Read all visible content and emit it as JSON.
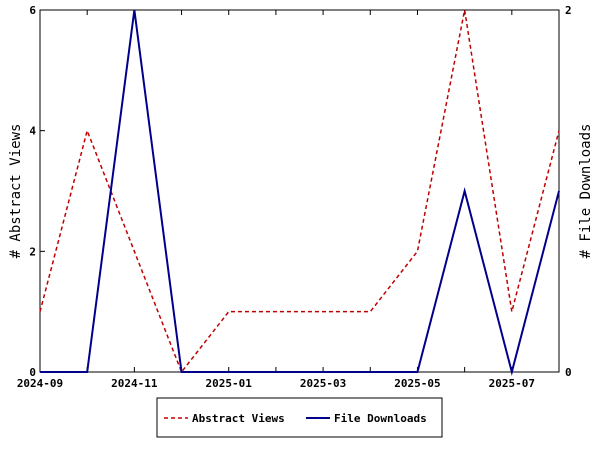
{
  "chart_data": {
    "type": "line",
    "x": [
      "2024-09",
      "2024-10",
      "2024-11",
      "2024-12",
      "2025-01",
      "2025-02",
      "2025-03",
      "2025-04",
      "2025-05",
      "2025-06",
      "2025-07",
      "2025-08"
    ],
    "x_ticks": [
      "2024-09",
      "2024-11",
      "2025-01",
      "2025-03",
      "2025-05",
      "2025-07"
    ],
    "series": [
      {
        "name": "Abstract Views",
        "axis": "left",
        "color": "#c00000",
        "dash": "dashed",
        "values": [
          1,
          4,
          2,
          0,
          1,
          1,
          1,
          1,
          2,
          6,
          1,
          4
        ]
      },
      {
        "name": "File Downloads",
        "axis": "right",
        "color": "#00008b",
        "dash": "solid",
        "values": [
          0,
          0,
          2,
          0,
          0,
          0,
          0,
          0,
          0,
          1,
          0,
          1
        ]
      }
    ],
    "ylabel_left": "# Abstract Views",
    "ylabel_right": "# File Downloads",
    "ylim_left": [
      0,
      6
    ],
    "yticks_left": [
      0,
      2,
      4,
      6
    ],
    "ylim_right": [
      0,
      2
    ],
    "yticks_right": [
      0,
      2
    ],
    "legend_position": "bottom-center",
    "grid": false
  }
}
